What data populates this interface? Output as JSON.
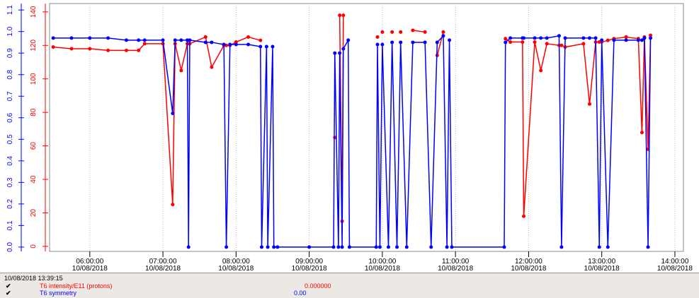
{
  "chart_data": {
    "type": "line",
    "date": "10/08/2018",
    "xlim": [
      "05:27:00",
      "14:07:00"
    ],
    "xticks": [
      "06:00:00",
      "07:00:00",
      "08:00:00",
      "09:00:00",
      "10:00:00",
      "11:00:00",
      "12:00:00",
      "13:00:00",
      "14:00:00"
    ],
    "x": [
      "05:30:00",
      "05:45:00",
      "06:00:00",
      "06:15:00",
      "06:30:00",
      "06:40:00",
      "06:45:00",
      "07:00:00",
      "07:08:00",
      "07:10:00",
      "07:15:00",
      "07:20:00",
      "07:21:00",
      "07:22:00",
      "07:35:00",
      "07:40:00",
      "07:50:00",
      "07:52:00",
      "07:55:00",
      "08:00:00",
      "08:10:00",
      "08:20:00",
      "08:21:00",
      "08:25:00",
      "08:26:00",
      "08:30:00",
      "08:31:00",
      "08:34:00",
      "09:00:00",
      "09:20:00",
      "09:21:00",
      "09:24:00",
      "09:25:00",
      "09:27:00",
      "09:28:00",
      "09:32:00",
      "09:33:00",
      "09:55:00",
      "09:56:00",
      "09:58:00",
      "10:00:00",
      "10:05:00",
      "10:08:00",
      "10:12:00",
      "10:15:00",
      "10:20:00",
      "10:25:00",
      "10:35:00",
      "10:40:00",
      "10:45:00",
      "10:50:00",
      "10:53:00",
      "10:55:00",
      "10:57:00",
      "11:40:00",
      "11:41:00",
      "11:45:00",
      "11:55:00",
      "11:56:00",
      "12:05:00",
      "12:10:00",
      "12:15:00",
      "12:25:00",
      "12:27:00",
      "12:30:00",
      "12:45:00",
      "12:50:00",
      "12:55:00",
      "12:58:00",
      "13:00:00",
      "13:05:00",
      "13:10:00",
      "13:20:00",
      "13:30:00",
      "13:33:00",
      "13:35:00",
      "13:38:00",
      "13:40:00"
    ],
    "series": [
      {
        "name": "T6 intensity/E11 (protons)",
        "color": "#ff0000",
        "axis": "y2",
        "cursor_value": "0.000000",
        "values": [
          119,
          118,
          118,
          117,
          117,
          117,
          121,
          121,
          25,
          121,
          105,
          121,
          121,
          121,
          125,
          107,
          120,
          120,
          120,
          122,
          125,
          123,
          null,
          null,
          null,
          null,
          null,
          null,
          null,
          null,
          65,
          null,
          138,
          15,
          138,
          null,
          null,
          null,
          125,
          null,
          128,
          null,
          128,
          null,
          128,
          null,
          129,
          128,
          null,
          114,
          128,
          null,
          null,
          null,
          null,
          124,
          122,
          122,
          18,
          122,
          105,
          121,
          120,
          120,
          119,
          121,
          85,
          122,
          122,
          122,
          123,
          124,
          125,
          124,
          68,
          125,
          58,
          126
        ]
      },
      {
        "name": "T6 symmetry",
        "color": "#0000ff",
        "cursor_value": "0.00",
        "values": [
          0.97,
          0.97,
          0.97,
          0.97,
          0.96,
          0.96,
          0.96,
          0.96,
          0.62,
          0.96,
          0.96,
          0.96,
          0,
          0.96,
          0.95,
          0.95,
          0.94,
          0,
          0.94,
          0.94,
          0.94,
          0.93,
          0,
          0.93,
          0,
          0.93,
          0,
          0,
          0,
          0,
          0.9,
          0,
          0.9,
          0,
          0.92,
          0.96,
          0,
          0,
          0.94,
          0,
          0.94,
          0,
          0.95,
          0,
          0.95,
          0,
          0.95,
          0.95,
          0,
          0.95,
          0.98,
          0,
          0.96,
          0,
          0,
          0.95,
          0.97,
          0.97,
          0.97,
          0.97,
          0.97,
          0.97,
          0.98,
          0,
          0.97,
          0.97,
          0.97,
          0.97,
          0,
          0.96,
          0,
          0.96,
          0.96,
          0.96,
          0.96,
          0.97,
          0,
          0.97
        ]
      }
    ],
    "ylim": [
      -0.02,
      1.13
    ],
    "yticks": [
      {
        "value": 0,
        "label": "0.0"
      },
      {
        "value": 0.1,
        "label": "0.1"
      },
      {
        "value": 0.2,
        "label": "0.2"
      },
      {
        "value": 0.3,
        "label": "0.3"
      },
      {
        "value": 0.4,
        "label": "0.4"
      },
      {
        "value": 0.5,
        "label": "0.5"
      },
      {
        "value": 0.6,
        "label": "0.6"
      },
      {
        "value": 0.7,
        "label": "0.7"
      },
      {
        "value": 0.8,
        "label": "0.8"
      },
      {
        "value": 0.9,
        "label": "0.9"
      },
      {
        "value": 1,
        "label": "1.0"
      },
      {
        "value": 1.1,
        "label": "1.1"
      }
    ],
    "y2lim": [
      -3,
      145
    ],
    "y2ticks": [
      0,
      20,
      40,
      60,
      80,
      100,
      120,
      140
    ],
    "grid": true,
    "cursor_time": "10/08/2018 13:39:15"
  }
}
